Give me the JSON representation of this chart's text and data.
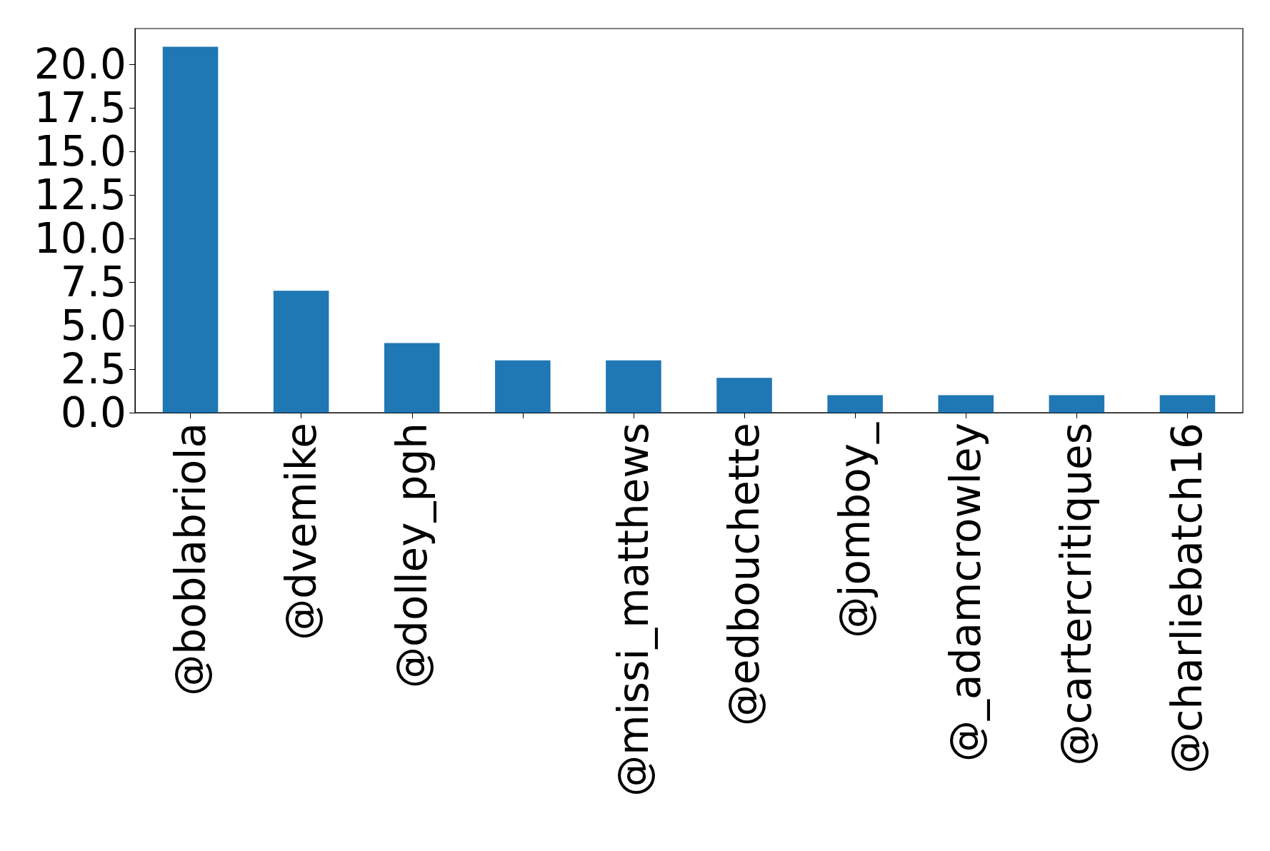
{
  "chart_data": {
    "type": "bar",
    "categories": [
      "@boblabriola",
      "@dvemike",
      "@dolley_pgh",
      null,
      "@missi_matthews",
      "@edbouchette",
      "@jomboy_",
      "@_adamcrowley",
      "@cartercritiques",
      "@charliebatch16"
    ],
    "values": [
      21,
      7,
      4,
      3,
      3,
      2,
      1,
      1,
      1,
      1
    ],
    "color": "#1f77b4",
    "ylim": [
      0,
      22.05
    ],
    "yticks": [
      {
        "value": 0,
        "label": "0.0"
      },
      {
        "value": 2.5,
        "label": "2.5"
      },
      {
        "value": 5,
        "label": "5.0"
      },
      {
        "value": 7.5,
        "label": "7.5"
      },
      {
        "value": 10,
        "label": "10.0"
      },
      {
        "value": 12.5,
        "label": "12.5"
      },
      {
        "value": 15,
        "label": "15.0"
      },
      {
        "value": 17.5,
        "label": "17.5"
      },
      {
        "value": 20,
        "label": "20.0"
      }
    ],
    "grid": false
  }
}
